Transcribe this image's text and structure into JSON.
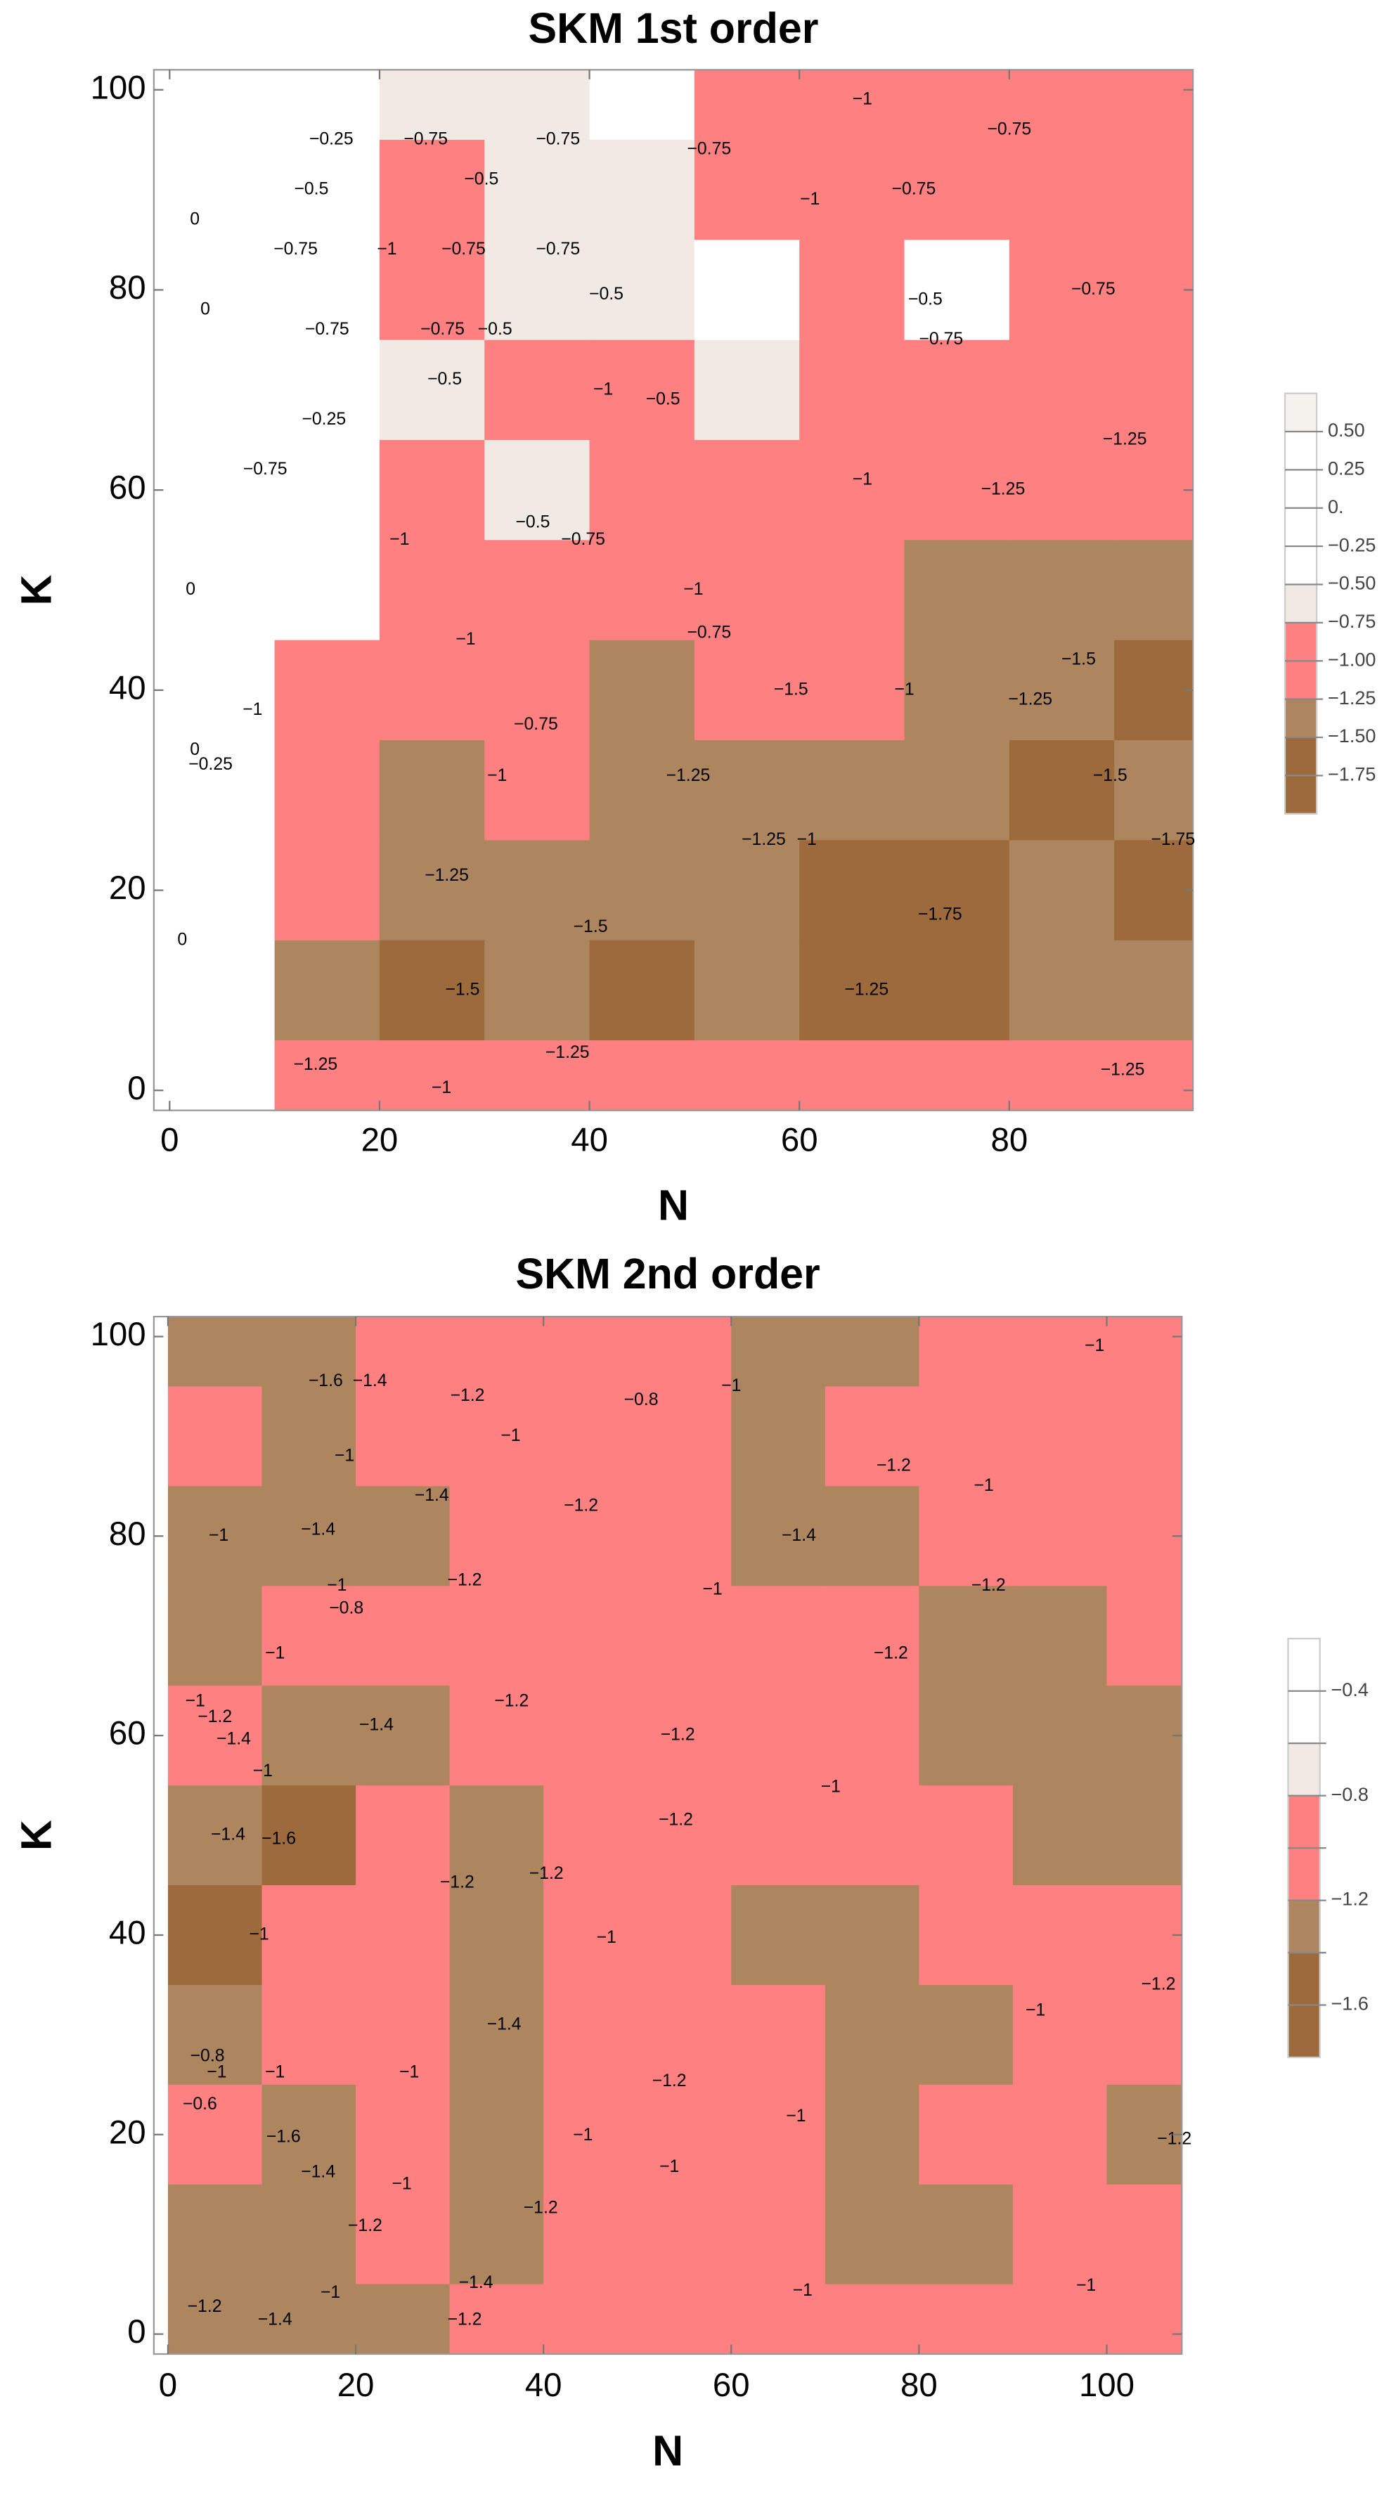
{
  "chart_data": [
    {
      "type": "contour",
      "title": "SKM 1st order",
      "x_label": "N",
      "y_label": "K",
      "xlim": [
        -1.5,
        97.5
      ],
      "ylim": [
        -2,
        102
      ],
      "xticks": [
        0,
        20,
        40,
        60,
        80
      ],
      "yticks": [
        0,
        20,
        40,
        60,
        80,
        100
      ],
      "x": [
        5,
        15,
        25,
        35,
        45,
        55,
        65,
        75,
        85,
        95
      ],
      "y": [
        100,
        90,
        80,
        70,
        60,
        50,
        40,
        30,
        20,
        10,
        0
      ],
      "z": [
        [
          0,
          -0.5,
          -0.6,
          -0.6,
          -0.5,
          -0.9,
          -1,
          -1,
          -0.8,
          -1
        ],
        [
          0,
          -0.4,
          -0.8,
          -0.6,
          -0.6,
          -0.8,
          -1,
          -0.8,
          -1,
          -1
        ],
        [
          0,
          -0.3,
          -0.8,
          -0.6,
          -0.6,
          -0.5,
          -0.9,
          -0.5,
          -0.9,
          -1
        ],
        [
          -0.1,
          -0.3,
          -0.6,
          -0.9,
          -0.8,
          -0.6,
          -1,
          -1,
          -1,
          -1.1
        ],
        [
          -0.1,
          -0.3,
          -0.9,
          -0.6,
          -0.9,
          -1,
          -1,
          -1,
          -1.2,
          -1.2
        ],
        [
          -0.1,
          -0.4,
          -1,
          -1,
          -0.8,
          -1.1,
          -1.2,
          -1.4,
          -1.4,
          -1.3
        ],
        [
          -0.2,
          -0.9,
          -1,
          -0.8,
          -1.3,
          -1.2,
          -1.1,
          -1.4,
          -1.3,
          -1.6
        ],
        [
          -0.2,
          -1,
          -1.3,
          -1.1,
          -1.3,
          -1.4,
          -1.4,
          -1.5,
          -1.6,
          -1.5
        ],
        [
          -0.1,
          -1.1,
          -1.3,
          -1.4,
          -1.5,
          -1.4,
          -1.6,
          -1.8,
          -1.5,
          -1.6
        ],
        [
          -0.1,
          -1.3,
          -1.6,
          -1.3,
          -1.6,
          -1.3,
          -1.6,
          -1.6,
          -1.4,
          -1.4
        ],
        [
          -0.2,
          -1.1,
          -1.1,
          -1.2,
          -1.1,
          -1.1,
          -1,
          -1.1,
          -1.1,
          -1.1
        ]
      ],
      "levels": [
        {
          "value": 0.5,
          "label": "0.50"
        },
        {
          "value": 0.25,
          "label": "0.25"
        },
        {
          "value": 0,
          "label": "0."
        },
        {
          "value": -0.25,
          "label": "−0.25"
        },
        {
          "value": -0.5,
          "label": "−0.50"
        },
        {
          "value": -0.75,
          "label": "−0.75"
        },
        {
          "value": -1,
          "label": "−1.00"
        },
        {
          "value": -1.25,
          "label": "−1.25"
        },
        {
          "value": -1.5,
          "label": "−1.50"
        },
        {
          "value": -1.75,
          "label": "−1.75"
        }
      ],
      "band_colors": [
        "#f5f1ed",
        "#ffffff",
        "#ffffff",
        "#ffffff",
        "#ffffff",
        "#f1eae4",
        "#ff8080",
        "#ff8080",
        "#ad8660",
        "#9c6a3b",
        "#9c6a3b"
      ],
      "contour_labels": [
        {
          "x": 15.4,
          "y": 95,
          "label": "−0.25"
        },
        {
          "x": 24.4,
          "y": 95,
          "label": "−0.75"
        },
        {
          "x": 37,
          "y": 95,
          "label": "−0.75"
        },
        {
          "x": 51.4,
          "y": 94,
          "label": "−0.75"
        },
        {
          "x": 66,
          "y": 99,
          "label": "−1"
        },
        {
          "x": 80,
          "y": 96,
          "label": "−0.75"
        },
        {
          "x": 13.5,
          "y": 90,
          "label": "−0.5"
        },
        {
          "x": 29.7,
          "y": 91,
          "label": "−0.5"
        },
        {
          "x": 70.9,
          "y": 90,
          "label": "−0.75"
        },
        {
          "x": 2.4,
          "y": 87,
          "label": "0"
        },
        {
          "x": 12,
          "y": 84,
          "label": "−0.75"
        },
        {
          "x": 20.7,
          "y": 84,
          "label": "−1"
        },
        {
          "x": 28,
          "y": 84,
          "label": "−0.75"
        },
        {
          "x": 37,
          "y": 84,
          "label": "−0.75"
        },
        {
          "x": 61,
          "y": 89,
          "label": "−1"
        },
        {
          "x": 72,
          "y": 79,
          "label": "−0.5"
        },
        {
          "x": 88,
          "y": 80,
          "label": "−0.75"
        },
        {
          "x": 3.4,
          "y": 78,
          "label": "0"
        },
        {
          "x": 41.6,
          "y": 79.5,
          "label": "−0.5"
        },
        {
          "x": 15,
          "y": 76,
          "label": "−0.75"
        },
        {
          "x": 26,
          "y": 76,
          "label": "−0.75"
        },
        {
          "x": 31,
          "y": 76,
          "label": "−0.5"
        },
        {
          "x": 73.5,
          "y": 75,
          "label": "−0.75"
        },
        {
          "x": 26.2,
          "y": 71,
          "label": "−0.5"
        },
        {
          "x": 41.3,
          "y": 70,
          "label": "−1"
        },
        {
          "x": 47,
          "y": 69,
          "label": "−0.5"
        },
        {
          "x": 14.7,
          "y": 67,
          "label": "−0.25"
        },
        {
          "x": 91,
          "y": 65,
          "label": "−1.25"
        },
        {
          "x": 9.1,
          "y": 62,
          "label": "−0.75"
        },
        {
          "x": 66,
          "y": 61,
          "label": "−1"
        },
        {
          "x": 79.4,
          "y": 60,
          "label": "−1.25"
        },
        {
          "x": 34.6,
          "y": 56.7,
          "label": "−0.5"
        },
        {
          "x": 39.4,
          "y": 55,
          "label": "−0.75"
        },
        {
          "x": 21.9,
          "y": 55,
          "label": "−1"
        },
        {
          "x": 2,
          "y": 50,
          "label": "0"
        },
        {
          "x": 49.9,
          "y": 50,
          "label": "−1"
        },
        {
          "x": 51.4,
          "y": 45.7,
          "label": "−0.75"
        },
        {
          "x": 28.2,
          "y": 45,
          "label": "−1"
        },
        {
          "x": 86.6,
          "y": 43,
          "label": "−1.5"
        },
        {
          "x": 59.2,
          "y": 40,
          "label": "−1.5"
        },
        {
          "x": 70,
          "y": 40,
          "label": "−1"
        },
        {
          "x": 82,
          "y": 39,
          "label": "−1.25"
        },
        {
          "x": 7.9,
          "y": 38,
          "label": "−1"
        },
        {
          "x": 34.9,
          "y": 36.5,
          "label": "−0.75"
        },
        {
          "x": 2.4,
          "y": 34,
          "label": "0"
        },
        {
          "x": 3.9,
          "y": 32.5,
          "label": "−0.25"
        },
        {
          "x": 49.4,
          "y": 31.4,
          "label": "−1.25"
        },
        {
          "x": 31.2,
          "y": 31.4,
          "label": "−1"
        },
        {
          "x": 89.6,
          "y": 31.4,
          "label": "−1.5"
        },
        {
          "x": 95.6,
          "y": 25,
          "label": "−1.75"
        },
        {
          "x": 56.6,
          "y": 25,
          "label": "−1.25"
        },
        {
          "x": 60.7,
          "y": 25,
          "label": "−1"
        },
        {
          "x": 26.4,
          "y": 21.4,
          "label": "−1.25"
        },
        {
          "x": 40.1,
          "y": 16.3,
          "label": "−1.5"
        },
        {
          "x": 73.4,
          "y": 17.5,
          "label": "−1.75"
        },
        {
          "x": 1.2,
          "y": 15,
          "label": "0"
        },
        {
          "x": 27.9,
          "y": 10,
          "label": "−1.5"
        },
        {
          "x": 66.4,
          "y": 10,
          "label": "−1.25"
        },
        {
          "x": 13.9,
          "y": 2.5,
          "label": "−1.25"
        },
        {
          "x": 37.9,
          "y": 3.7,
          "label": "−1.25"
        },
        {
          "x": 25.9,
          "y": 0.2,
          "label": "−1"
        },
        {
          "x": 90.8,
          "y": 2,
          "label": "−1.25"
        }
      ]
    },
    {
      "type": "contour",
      "title": "SKM 2nd order",
      "x_label": "N",
      "y_label": "K",
      "xlim": [
        -1.5,
        108
      ],
      "ylim": [
        -2,
        102
      ],
      "xticks": [
        0,
        20,
        40,
        60,
        80,
        100
      ],
      "yticks": [
        0,
        20,
        40,
        60,
        80,
        100
      ],
      "x": [
        5,
        15,
        25,
        35,
        45,
        55,
        65,
        75,
        85,
        95,
        105
      ],
      "y": [
        100,
        90,
        80,
        70,
        60,
        50,
        40,
        30,
        20,
        10,
        0
      ],
      "z": [
        [
          -1.3,
          -1.4,
          -1.2,
          -1.1,
          -0.9,
          -1.1,
          -1.3,
          -1.3,
          -1.1,
          -1.1,
          -1.1
        ],
        [
          -1.2,
          -1.3,
          -1.2,
          -1.1,
          -1.1,
          -1.1,
          -1.3,
          -1.2,
          -1.1,
          -1.1,
          -1.2
        ],
        [
          -1.4,
          -1.3,
          -1.3,
          -1.1,
          -1.1,
          -1.1,
          -1.3,
          -1.3,
          -1.2,
          -1.2,
          -1.1
        ],
        [
          -1.3,
          -1.1,
          -0.9,
          -1.1,
          -1.1,
          -1.1,
          -1.1,
          -1.1,
          -1.3,
          -1.3,
          -1.1
        ],
        [
          -1.2,
          -1.3,
          -1.3,
          -1.1,
          -1.1,
          -1.1,
          -1,
          -1.1,
          -1.3,
          -1.3,
          -1.3
        ],
        [
          -1.4,
          -1.5,
          -1.2,
          -1.3,
          -1.1,
          -1.1,
          -1.1,
          -1.1,
          -1.1,
          -1.3,
          -1.3
        ],
        [
          -1.5,
          -1.1,
          -1.1,
          -1.3,
          -1.1,
          -1.2,
          -1.3,
          -1.3,
          -1.1,
          -1.1,
          -1.1
        ],
        [
          -1.3,
          -1.1,
          -1.2,
          -1.3,
          -1.2,
          -1.1,
          -1.1,
          -1.3,
          -1.3,
          -1.1,
          -1.1
        ],
        [
          -1.2,
          -1.4,
          -1.1,
          -1.3,
          -1.1,
          -1.1,
          -1.1,
          -1.3,
          -1.1,
          -1.1,
          -1.3
        ],
        [
          -1.3,
          -1.4,
          -1.1,
          -1.3,
          -1.1,
          -1.1,
          -1.1,
          -1.3,
          -1.3,
          -1.1,
          -1.1
        ],
        [
          -1.4,
          -1.3,
          -1.3,
          -1.2,
          -1.1,
          -1.1,
          -1.1,
          -1.1,
          -1.1,
          -1.1,
          -1.1
        ]
      ],
      "levels": [
        -0.4,
        -0.6,
        -0.8,
        -1,
        -1.2,
        -1.4,
        -1.6
      ],
      "legend_ticks": [
        {
          "value": -0.4,
          "label": "−0.4"
        },
        {
          "value": -0.8,
          "label": "−0.8"
        },
        {
          "value": -1.2,
          "label": "−1.2"
        },
        {
          "value": -1.6,
          "label": "−1.6"
        }
      ],
      "band_colors": [
        "#ffffff",
        "#ffffff",
        "#f1eae4",
        "#ff8080",
        "#ff8080",
        "#ad8660",
        "#9c6a3b",
        "#9c6a3b"
      ],
      "contour_labels": [
        {
          "x": 98.7,
          "y": 99,
          "label": "−1"
        },
        {
          "x": 16.8,
          "y": 95.5,
          "label": "−1.6"
        },
        {
          "x": 21.5,
          "y": 95.5,
          "label": "−1.4"
        },
        {
          "x": 31.9,
          "y": 94,
          "label": "−1.2"
        },
        {
          "x": 50.4,
          "y": 93.6,
          "label": "−0.8"
        },
        {
          "x": 60,
          "y": 95,
          "label": "−1"
        },
        {
          "x": 36.5,
          "y": 90,
          "label": "−1"
        },
        {
          "x": 18.8,
          "y": 88,
          "label": "−1"
        },
        {
          "x": 77.3,
          "y": 87,
          "label": "−1.2"
        },
        {
          "x": 86.9,
          "y": 85,
          "label": "−1"
        },
        {
          "x": 28.1,
          "y": 84,
          "label": "−1.4"
        },
        {
          "x": 44,
          "y": 83,
          "label": "−1.2"
        },
        {
          "x": 67.2,
          "y": 80,
          "label": "−1.4"
        },
        {
          "x": 16,
          "y": 80.6,
          "label": "−1.4"
        },
        {
          "x": 5.4,
          "y": 80,
          "label": "−1"
        },
        {
          "x": 31.6,
          "y": 75.5,
          "label": "−1.2"
        },
        {
          "x": 87.4,
          "y": 75,
          "label": "−1.2"
        },
        {
          "x": 18,
          "y": 75,
          "label": "−1"
        },
        {
          "x": 58,
          "y": 74.6,
          "label": "−1"
        },
        {
          "x": 19,
          "y": 72.7,
          "label": "−0.8"
        },
        {
          "x": 77,
          "y": 68.2,
          "label": "−1.2"
        },
        {
          "x": 11.4,
          "y": 68.2,
          "label": "−1"
        },
        {
          "x": 36.6,
          "y": 63.4,
          "label": "−1.2"
        },
        {
          "x": 2.9,
          "y": 63.4,
          "label": "−1"
        },
        {
          "x": 5,
          "y": 61.8,
          "label": "−1.2"
        },
        {
          "x": 22.2,
          "y": 61,
          "label": "−1.4"
        },
        {
          "x": 7,
          "y": 59.6,
          "label": "−1.4"
        },
        {
          "x": 54.3,
          "y": 60,
          "label": "−1.2"
        },
        {
          "x": 70.6,
          "y": 54.8,
          "label": "−1"
        },
        {
          "x": 10.1,
          "y": 56.4,
          "label": "−1"
        },
        {
          "x": 54.1,
          "y": 51.5,
          "label": "−1.2"
        },
        {
          "x": 6.4,
          "y": 50,
          "label": "−1.4"
        },
        {
          "x": 11.8,
          "y": 49.6,
          "label": "−1.6"
        },
        {
          "x": 30.8,
          "y": 45.2,
          "label": "−1.2"
        },
        {
          "x": 40.3,
          "y": 46.1,
          "label": "−1.2"
        },
        {
          "x": 46.7,
          "y": 39.7,
          "label": "−1"
        },
        {
          "x": 9.7,
          "y": 40,
          "label": "−1"
        },
        {
          "x": 105.5,
          "y": 35,
          "label": "−1.2"
        },
        {
          "x": 92.4,
          "y": 32.4,
          "label": "−1"
        },
        {
          "x": 35.8,
          "y": 31,
          "label": "−1.4"
        },
        {
          "x": 4.2,
          "y": 27.8,
          "label": "−0.8"
        },
        {
          "x": 5.2,
          "y": 26.2,
          "label": "−1"
        },
        {
          "x": 3.4,
          "y": 23,
          "label": "−0.6"
        },
        {
          "x": 11.4,
          "y": 26.2,
          "label": "−1"
        },
        {
          "x": 25.7,
          "y": 26.2,
          "label": "−1"
        },
        {
          "x": 53.4,
          "y": 25.3,
          "label": "−1.2"
        },
        {
          "x": 66.9,
          "y": 21.8,
          "label": "−1"
        },
        {
          "x": 107.2,
          "y": 19.5,
          "label": "−1.2"
        },
        {
          "x": 12.3,
          "y": 19.7,
          "label": "−1.6"
        },
        {
          "x": 44.2,
          "y": 19.9,
          "label": "−1"
        },
        {
          "x": 39.7,
          "y": 12.6,
          "label": "−1.2"
        },
        {
          "x": 16,
          "y": 16.2,
          "label": "−1.4"
        },
        {
          "x": 53.4,
          "y": 16.7,
          "label": "−1"
        },
        {
          "x": 24.9,
          "y": 15,
          "label": "−1"
        },
        {
          "x": 21,
          "y": 10.8,
          "label": "−1.2"
        },
        {
          "x": 17.3,
          "y": 4.1,
          "label": "−1"
        },
        {
          "x": 32.8,
          "y": 5.1,
          "label": "−1.4"
        },
        {
          "x": 31.6,
          "y": 1.4,
          "label": "−1.2"
        },
        {
          "x": 3.9,
          "y": 2.7,
          "label": "−1.2"
        },
        {
          "x": 11.4,
          "y": 1.4,
          "label": "−1.4"
        },
        {
          "x": 67.6,
          "y": 4.3,
          "label": "−1"
        },
        {
          "x": 97.8,
          "y": 4.8,
          "label": "−1"
        }
      ]
    }
  ]
}
